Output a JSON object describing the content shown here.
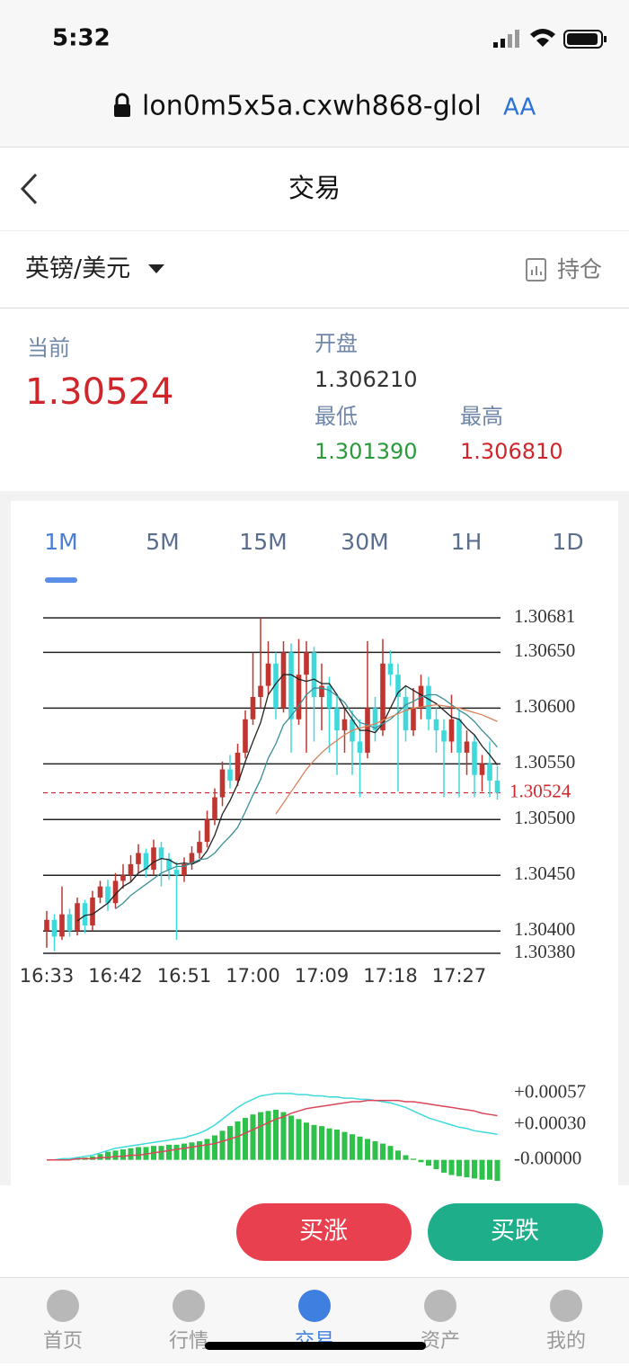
{
  "status_bar": {
    "time": "5:32"
  },
  "browser": {
    "url": "lon0m5x5a.cxwh868-glol",
    "text_size": "AA"
  },
  "nav": {
    "title": "交易"
  },
  "instrument": {
    "name": "英镑/美元",
    "holdings": "持仓"
  },
  "quote": {
    "current_label": "当前",
    "current": "1.30524",
    "open_label": "开盘",
    "open": "1.306210",
    "low_label": "最低",
    "low": "1.301390",
    "high_label": "最高",
    "high": "1.306810"
  },
  "timeframes": [
    "1M",
    "5M",
    "15M",
    "30M",
    "1H",
    "1D"
  ],
  "active_timeframe": 0,
  "chart_data": [
    {
      "type": "candlestick",
      "categories": [
        "16:33",
        null,
        null,
        null,
        null,
        null,
        null,
        null,
        null,
        "16:42",
        null,
        null,
        null,
        null,
        null,
        null,
        null,
        null,
        "16:51",
        null,
        null,
        null,
        null,
        null,
        null,
        null,
        null,
        "17:00",
        null,
        null,
        null,
        null,
        null,
        null,
        null,
        null,
        "17:09",
        null,
        null,
        null,
        null,
        null,
        null,
        null,
        null,
        "17:18",
        null,
        null,
        null,
        null,
        null,
        null,
        null,
        null,
        "17:27",
        null,
        null,
        null,
        null,
        null
      ],
      "open": [
        1.304,
        1.3041,
        1.30395,
        1.30415,
        1.304,
        1.30425,
        1.30405,
        1.3043,
        1.3044,
        1.30425,
        1.30445,
        1.3045,
        1.3046,
        1.3047,
        1.30455,
        1.30475,
        1.30465,
        1.30455,
        1.3045,
        1.3046,
        1.3047,
        1.3048,
        1.305,
        1.3052,
        1.30545,
        1.30535,
        1.3056,
        1.3059,
        1.3061,
        1.3062,
        1.3064,
        1.306,
        1.3065,
        1.3059,
        1.3063,
        1.3065,
        1.3061,
        1.3062,
        1.306,
        1.3058,
        1.3059,
        1.3057,
        1.3056,
        1.306,
        1.3058,
        1.3064,
        1.3063,
        1.3061,
        1.3058,
        1.306,
        1.3062,
        1.3059,
        1.3058,
        1.3057,
        1.3059,
        1.3056,
        1.3057,
        1.3054,
        1.3055,
        1.30535
      ],
      "high": [
        1.30418,
        1.30415,
        1.3044,
        1.3042,
        1.3043,
        1.30428,
        1.30436,
        1.30445,
        1.30446,
        1.30452,
        1.3046,
        1.30468,
        1.30478,
        1.30474,
        1.30482,
        1.3048,
        1.3047,
        1.30462,
        1.30466,
        1.30476,
        1.3049,
        1.30508,
        1.30528,
        1.30552,
        1.30558,
        1.30568,
        1.30598,
        1.3065,
        1.30681,
        1.3066,
        1.3065,
        1.3066,
        1.30658,
        1.30662,
        1.3066,
        1.30655,
        1.3064,
        1.30628,
        1.30612,
        1.306,
        1.30598,
        1.3059,
        1.3066,
        1.3061,
        1.30662,
        1.30652,
        1.3064,
        1.3062,
        1.30618,
        1.3063,
        1.30628,
        1.306,
        1.3059,
        1.30612,
        1.30598,
        1.3058,
        1.30576,
        1.30558,
        1.3057,
        1.30548
      ],
      "low": [
        1.30385,
        1.30382,
        1.30392,
        1.30395,
        1.30396,
        1.30398,
        1.304,
        1.30425,
        1.30418,
        1.3042,
        1.30438,
        1.30444,
        1.30452,
        1.30448,
        1.3045,
        1.3044,
        1.30446,
        1.30392,
        1.30444,
        1.30455,
        1.30465,
        1.30475,
        1.30495,
        1.30512,
        1.30528,
        1.3053,
        1.30555,
        1.30585,
        1.306,
        1.30612,
        1.3059,
        1.30596,
        1.3056,
        1.30585,
        1.3056,
        1.3057,
        1.3058,
        1.3056,
        1.3054,
        1.3056,
        1.3054,
        1.3052,
        1.30555,
        1.3057,
        1.30575,
        1.3062,
        1.30525,
        1.3057,
        1.30575,
        1.3059,
        1.3058,
        1.3056,
        1.3052,
        1.3056,
        1.3052,
        1.3054,
        1.3052,
        1.30525,
        1.3052,
        1.30518
      ],
      "close": [
        1.3041,
        1.30395,
        1.30415,
        1.304,
        1.30425,
        1.30405,
        1.3043,
        1.3044,
        1.30425,
        1.30445,
        1.3045,
        1.3046,
        1.3047,
        1.30455,
        1.30475,
        1.30465,
        1.30455,
        1.3045,
        1.3046,
        1.3047,
        1.3048,
        1.305,
        1.3052,
        1.30545,
        1.30535,
        1.3056,
        1.3059,
        1.3061,
        1.3062,
        1.3064,
        1.306,
        1.3065,
        1.3059,
        1.3063,
        1.3065,
        1.3061,
        1.3062,
        1.306,
        1.3058,
        1.3059,
        1.3057,
        1.3056,
        1.306,
        1.3058,
        1.3064,
        1.3063,
        1.3061,
        1.3058,
        1.306,
        1.3062,
        1.3059,
        1.3058,
        1.3057,
        1.3059,
        1.3056,
        1.3057,
        1.3054,
        1.3055,
        1.30535,
        1.30524
      ],
      "up_color": "#c0352f",
      "down_color": "#3fd9dc",
      "lines": [
        {
          "color": "#222222",
          "values": [
            null,
            null,
            null,
            null,
            1.30409,
            1.30414,
            1.30415,
            1.3042,
            1.30425,
            1.30433,
            1.3044,
            1.30444,
            1.30452,
            1.30456,
            1.30462,
            1.30465,
            1.30464,
            1.3046,
            1.30461,
            1.3046,
            1.30463,
            1.30472,
            1.30486,
            1.30505,
            1.30517,
            1.30532,
            1.30552,
            1.3057,
            1.30587,
            1.30612,
            1.30622,
            1.3063,
            1.3063,
            1.30626,
            1.30624,
            1.30626,
            1.30622,
            1.30622,
            1.30612,
            1.306,
            1.3059,
            1.3058,
            1.3058,
            1.30578,
            1.30586,
            1.306,
            1.30614,
            1.3062,
            1.30616,
            1.30612,
            1.30608,
            1.30604,
            1.30598,
            1.30592,
            1.3059,
            1.30582,
            1.30576,
            1.30566,
            1.30558,
            1.30549
          ]
        },
        {
          "color": "#3a8f96",
          "values": [
            null,
            null,
            null,
            null,
            null,
            null,
            null,
            null,
            null,
            1.3042,
            1.30425,
            1.30432,
            1.30437,
            1.30442,
            1.30447,
            1.30452,
            1.30455,
            1.30458,
            1.30458,
            1.30461,
            1.30464,
            1.30465,
            1.3047,
            1.30478,
            1.30485,
            1.30493,
            1.30507,
            1.30522,
            1.30536,
            1.30555,
            1.30568,
            1.30585,
            1.30593,
            1.30602,
            1.30612,
            1.30618,
            1.30618,
            1.30616,
            1.30611,
            1.30605,
            1.30595,
            1.30587,
            1.30585,
            1.30582,
            1.30586,
            1.3059,
            1.30596,
            1.30603,
            1.30606,
            1.3061,
            1.30612,
            1.30612,
            1.30608,
            1.30603,
            1.30598,
            1.30594,
            1.30588,
            1.3058,
            1.30573,
            1.30565
          ]
        },
        {
          "color": "#d9825a",
          "values": [
            null,
            null,
            null,
            null,
            null,
            null,
            null,
            null,
            null,
            null,
            null,
            null,
            null,
            null,
            null,
            null,
            null,
            null,
            null,
            null,
            null,
            null,
            null,
            null,
            null,
            null,
            null,
            null,
            null,
            null,
            1.30505,
            1.30515,
            1.30525,
            1.30535,
            1.30545,
            1.30553,
            1.3056,
            1.30566,
            1.30571,
            1.30576,
            1.3058,
            1.30582,
            1.30584,
            1.30586,
            1.30589,
            1.30592,
            1.30595,
            1.30598,
            1.306,
            1.30601,
            1.30602,
            1.30603,
            1.30602,
            1.30601,
            1.306,
            1.30598,
            1.30596,
            1.30594,
            1.30591,
            1.30588
          ]
        }
      ],
      "ref_line": {
        "value": 1.30524,
        "color": "#d0262b"
      },
      "ylim": [
        1.3038,
        1.30681
      ],
      "yticks": [
        {
          "value": 1.3038,
          "label": "1.30380"
        },
        {
          "value": 1.304,
          "label": "1.30400"
        },
        {
          "value": 1.3045,
          "label": "1.30450"
        },
        {
          "value": 1.305,
          "label": "1.30500"
        },
        {
          "value": 1.3055,
          "label": "1.30550"
        },
        {
          "value": 1.306,
          "label": "1.30600"
        },
        {
          "value": 1.3065,
          "label": "1.30650"
        },
        1.30681
      ],
      "grid": true
    },
    {
      "type": "macd",
      "bars": {
        "color": "#2fc24a",
        "values": [
          0,
          0,
          1e-05,
          1e-05,
          2e-05,
          2e-05,
          3e-05,
          5e-05,
          7e-05,
          8e-05,
          9e-05,
          0.0001,
          0.00011,
          0.00011,
          0.00012,
          0.00012,
          0.00013,
          0.00013,
          0.00014,
          0.00015,
          0.00016,
          0.00018,
          0.00021,
          0.00025,
          0.00029,
          0.00033,
          0.00036,
          0.00039,
          0.00041,
          0.00042,
          0.00043,
          0.00041,
          0.00038,
          0.00035,
          0.00032,
          0.0003,
          0.00029,
          0.00027,
          0.00026,
          0.00024,
          0.00022,
          0.0002,
          0.00018,
          0.00016,
          0.00014,
          0.00012,
          8e-05,
          4e-05,
          1e-05,
          -2e-05,
          -5e-05,
          -8e-05,
          -0.00011,
          -0.00013,
          -0.00014,
          -0.00015,
          -0.00016,
          -0.00017,
          -0.00017,
          -0.00018
        ]
      },
      "lines": [
        {
          "color": "#3fd9dc",
          "values": [
            0,
            0,
            1e-05,
            1e-05,
            2e-05,
            3e-05,
            4e-05,
            6e-05,
            8e-05,
            0.0001,
            0.00011,
            0.00012,
            0.00013,
            0.00014,
            0.00015,
            0.00016,
            0.00017,
            0.00018,
            0.00019,
            0.00021,
            0.00023,
            0.00026,
            0.0003,
            0.00035,
            0.0004,
            0.00045,
            0.00049,
            0.00052,
            0.00055,
            0.00056,
            0.00057,
            0.00057,
            0.00057,
            0.00056,
            0.00056,
            0.00055,
            0.00055,
            0.00054,
            0.00054,
            0.00053,
            0.00053,
            0.00052,
            0.00052,
            0.00051,
            0.0005,
            0.00049,
            0.00047,
            0.00045,
            0.00042,
            0.00039,
            0.00036,
            0.00034,
            0.00032,
            0.0003,
            0.00028,
            0.00027,
            0.00025,
            0.00024,
            0.00023,
            0.00022
          ]
        },
        {
          "color": "#d9475a",
          "values": [
            0,
            0,
            0,
            0,
            1e-05,
            1e-05,
            1e-05,
            2e-05,
            2e-05,
            3e-05,
            3e-05,
            4e-05,
            4e-05,
            5e-05,
            6e-05,
            7e-05,
            8e-05,
            9e-05,
            0.0001,
            0.00011,
            0.00012,
            0.00013,
            0.00014,
            0.00016,
            0.00018,
            0.0002,
            0.00023,
            0.00026,
            0.00029,
            0.00032,
            0.00035,
            0.00037,
            0.0004,
            0.00042,
            0.00044,
            0.00045,
            0.00046,
            0.00047,
            0.00048,
            0.00049,
            0.0005,
            0.0005,
            0.00051,
            0.00051,
            0.00051,
            0.00051,
            0.00051,
            0.0005,
            0.0005,
            0.00049,
            0.00048,
            0.00047,
            0.00046,
            0.00045,
            0.00044,
            0.00043,
            0.00042,
            0.0004,
            0.00039,
            0.00038
          ]
        }
      ],
      "ylim": [
        -0.00018,
        0.0006
      ],
      "yticks": [
        {
          "value": 0.00057,
          "label": "+0.00057"
        },
        {
          "value": 0.0003,
          "label": "+0.00030"
        },
        {
          "value": 0,
          "label": "-0.00000"
        }
      ]
    }
  ],
  "actions": {
    "buy_up": "买涨",
    "buy_down": "买跌"
  },
  "tabs": [
    "首页",
    "行情",
    "交易",
    "资产",
    "我的"
  ],
  "active_tab": 2
}
